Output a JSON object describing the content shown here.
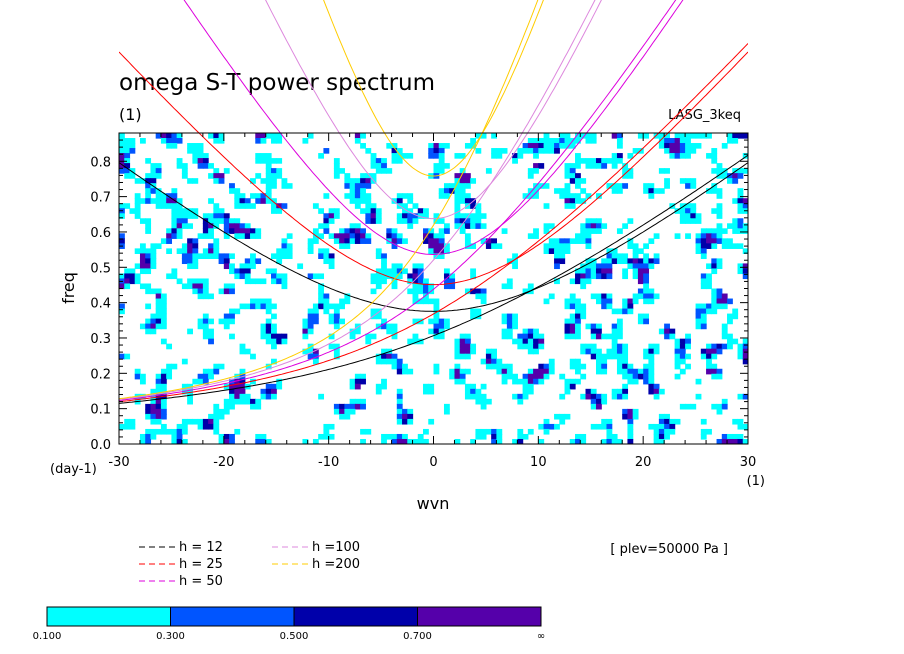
{
  "chart_data": {
    "type": "heatmap",
    "title": "omega S-T power spectrum",
    "subtitle": "(1)",
    "model_label": "LASG_3keq",
    "xlabel": "wvn",
    "ylabel": "freq",
    "x_unit": "(1)",
    "y_unit": "(day-1)",
    "xlim": [
      -30,
      30
    ],
    "ylim": [
      0,
      0.88
    ],
    "x_ticks": [
      -30,
      -20,
      -10,
      0,
      10,
      20,
      30
    ],
    "x_tick_labels": [
      "-30",
      "-20",
      "-10",
      "0",
      "10",
      "20",
      "30"
    ],
    "y_ticks": [
      0,
      0.1,
      0.2,
      0.3,
      0.4,
      0.5,
      0.6,
      0.7,
      0.8
    ],
    "y_tick_labels": [
      "0.0",
      "0.1",
      "0.2",
      "0.3",
      "0.4",
      "0.5",
      "0.6",
      "0.7",
      "0.8"
    ],
    "plev_label": "[ plev=50000 Pa ]",
    "contour_levels": [
      0.1,
      0.3,
      0.5,
      0.7
    ],
    "colorbar": {
      "colors": [
        "#00ffff",
        "#0055ff",
        "#0000aa",
        "#5500aa"
      ],
      "labels": [
        "0.100",
        "0.300",
        "0.500",
        "0.700",
        "∞"
      ]
    },
    "dispersion_curves": [
      {
        "label": "h = 12",
        "h": 12,
        "color": "#000000"
      },
      {
        "label": "h = 25",
        "h": 25,
        "color": "#ff0000"
      },
      {
        "label": "h = 50",
        "h": 50,
        "color": "#dd00dd"
      },
      {
        "label": "h =100",
        "h": 100,
        "color": "#dd88dd"
      },
      {
        "label": "h =200",
        "h": 200,
        "color": "#ffcc00"
      }
    ]
  }
}
